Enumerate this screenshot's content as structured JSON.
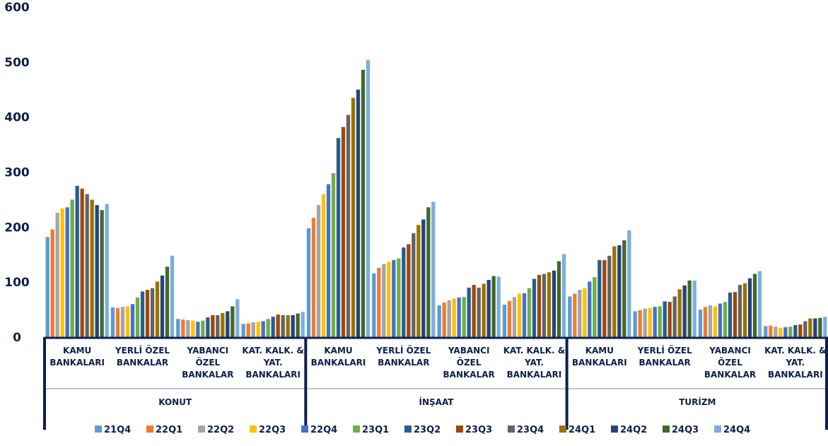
{
  "chart_data": {
    "type": "bar",
    "ylim": [
      0,
      600
    ],
    "yticks": [
      "0",
      "100",
      "200",
      "300",
      "400",
      "500",
      "600"
    ],
    "grid": false,
    "legend_position": "bottom",
    "groups": [
      {
        "name": "KONUT",
        "categories": [
          [
            "KAMU",
            "BANKALARI"
          ],
          [
            "YERLİ ÖZEL",
            "BANKALAR"
          ],
          [
            "YABANCI",
            "ÖZEL",
            "BANKALAR"
          ],
          [
            "KAT. KALK. &",
            "YAT.",
            "BANKALARI"
          ]
        ]
      },
      {
        "name": "İNŞAAT",
        "categories": [
          [
            "KAMU",
            "BANKALARI"
          ],
          [
            "YERLİ ÖZEL",
            "BANKALAR"
          ],
          [
            "YABANCI",
            "ÖZEL",
            "BANKALAR"
          ],
          [
            "KAT. KALK. &",
            "YAT.",
            "BANKALARI"
          ]
        ]
      },
      {
        "name": "TURİZM",
        "categories": [
          [
            "KAMU",
            "BANKALARI"
          ],
          [
            "YERLİ ÖZEL",
            "BANKALAR"
          ],
          [
            "YABANCI",
            "ÖZEL",
            "BANKALAR"
          ],
          [
            "KAT. KALK. &",
            "YAT.",
            "BANKALARI"
          ]
        ]
      }
    ],
    "series": [
      {
        "name": "21Q4",
        "color": "#5b9bd5",
        "values": [
          182,
          54,
          33,
          24,
          198,
          116,
          58,
          59,
          74,
          47,
          50,
          20
        ]
      },
      {
        "name": "22Q1",
        "color": "#ed7d31",
        "values": [
          196,
          53,
          32,
          25,
          217,
          126,
          63,
          66,
          79,
          49,
          55,
          21
        ]
      },
      {
        "name": "22Q2",
        "color": "#a5a5a5",
        "values": [
          226,
          55,
          31,
          27,
          240,
          133,
          67,
          73,
          86,
          52,
          58,
          19
        ]
      },
      {
        "name": "22Q3",
        "color": "#ffc000",
        "values": [
          234,
          56,
          30,
          28,
          260,
          137,
          70,
          79,
          89,
          53,
          56,
          17
        ]
      },
      {
        "name": "22Q4",
        "color": "#4472c4",
        "values": [
          236,
          60,
          28,
          29,
          278,
          140,
          72,
          80,
          101,
          55,
          61,
          18
        ]
      },
      {
        "name": "23Q1",
        "color": "#70ad47",
        "values": [
          250,
          72,
          30,
          33,
          298,
          143,
          73,
          89,
          109,
          56,
          64,
          19
        ]
      },
      {
        "name": "23Q2",
        "color": "#255e91",
        "values": [
          275,
          83,
          36,
          37,
          362,
          163,
          90,
          106,
          140,
          65,
          81,
          22
        ]
      },
      {
        "name": "23Q3",
        "color": "#9e480e",
        "values": [
          270,
          86,
          40,
          41,
          382,
          169,
          95,
          113,
          140,
          64,
          82,
          23
        ]
      },
      {
        "name": "23Q4",
        "color": "#636363",
        "values": [
          260,
          89,
          40,
          40,
          404,
          189,
          90,
          115,
          148,
          74,
          95,
          29
        ]
      },
      {
        "name": "24Q1",
        "color": "#997300",
        "values": [
          250,
          101,
          44,
          40,
          435,
          204,
          97,
          118,
          165,
          87,
          98,
          34
        ]
      },
      {
        "name": "24Q2",
        "color": "#264478",
        "values": [
          240,
          112,
          47,
          40,
          450,
          214,
          104,
          121,
          167,
          94,
          107,
          34
        ]
      },
      {
        "name": "24Q3",
        "color": "#43682b",
        "values": [
          231,
          128,
          56,
          43,
          486,
          236,
          111,
          138,
          176,
          103,
          115,
          35
        ]
      },
      {
        "name": "24Q4",
        "color": "#7cafdd",
        "values": [
          242,
          148,
          69,
          46,
          504,
          246,
          110,
          151,
          194,
          103,
          120,
          37
        ]
      }
    ]
  }
}
